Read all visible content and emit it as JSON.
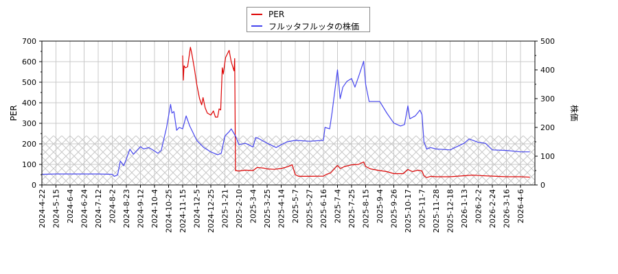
{
  "chart_data": {
    "type": "line",
    "title": "",
    "legend": {
      "position": "top-center",
      "entries": [
        {
          "label": "PER",
          "color": "#dd0000"
        },
        {
          "label": "フルッタフルッタの株価",
          "color": "#4444ee"
        }
      ]
    },
    "left_axis": {
      "label": "PER",
      "ylim": [
        0,
        700
      ],
      "ticks": [
        0,
        100,
        200,
        300,
        400,
        500,
        600,
        700
      ]
    },
    "right_axis": {
      "label": "株価",
      "ylim": [
        0,
        500
      ],
      "ticks": [
        0,
        100,
        200,
        300,
        400,
        500
      ]
    },
    "grid": true,
    "hatched_band": {
      "axis": "left",
      "from": 0,
      "to": 240
    },
    "x_tick_labels": [
      "2024-4-22",
      "2024-5-15",
      "2024-6-4",
      "2024-6-24",
      "2024-7-12",
      "2024-8-2",
      "2024-8-23",
      "2024-9-12",
      "2024-10-4",
      "2024-10-25",
      "2024-11-15",
      "2024-12-5",
      "2024-12-25",
      "2025-1-21",
      "2025-2-10",
      "2025-3-4",
      "2025-3-25",
      "2025-4-14",
      "2025-5-7",
      "2025-5-27",
      "2025-6-16",
      "2025-7-4",
      "2025-7-25",
      "2025-8-15",
      "2025-9-4",
      "2025-9-26",
      "2025-10-17",
      "2025-11-7",
      "2025-11-28",
      "2025-12-18",
      "2026-1-13",
      "2026-2-2",
      "2026-2-24",
      "2026-3-16",
      "2026-4-6"
    ],
    "series": [
      {
        "name": "PER",
        "axis": "left",
        "color": "#dd0000",
        "points": [
          [
            "2024-11-15",
            630
          ],
          [
            "2024-11-16",
            510
          ],
          [
            "2024-11-17",
            580
          ],
          [
            "2024-11-19",
            570
          ],
          [
            "2024-11-22",
            575
          ],
          [
            "2024-11-26",
            670
          ],
          [
            "2024-11-28",
            640
          ],
          [
            "2024-12-2",
            560
          ],
          [
            "2024-12-5",
            490
          ],
          [
            "2024-12-9",
            420
          ],
          [
            "2024-12-12",
            390
          ],
          [
            "2024-12-14",
            425
          ],
          [
            "2024-12-17",
            375
          ],
          [
            "2024-12-20",
            350
          ],
          [
            "2024-12-25",
            340
          ],
          [
            "2024-12-30",
            360
          ],
          [
            "2025-1-3",
            330
          ],
          [
            "2025-1-7",
            330
          ],
          [
            "2025-1-10",
            370
          ],
          [
            "2025-1-13",
            365
          ],
          [
            "2025-1-16",
            570
          ],
          [
            "2025-1-18",
            540
          ],
          [
            "2025-1-22",
            620
          ],
          [
            "2025-1-27",
            655
          ],
          [
            "2025-1-30",
            600
          ],
          [
            "2025-2-3",
            555
          ],
          [
            "2025-2-4",
            615
          ],
          [
            "2025-2-5",
            70
          ],
          [
            "2025-2-10",
            68
          ],
          [
            "2025-2-20",
            72
          ],
          [
            "2025-3-4",
            70
          ],
          [
            "2025-3-10",
            85
          ],
          [
            "2025-3-20",
            82
          ],
          [
            "2025-3-25",
            78
          ],
          [
            "2025-4-4",
            76
          ],
          [
            "2025-4-14",
            80
          ],
          [
            "2025-4-24",
            88
          ],
          [
            "2025-5-2",
            98
          ],
          [
            "2025-5-7",
            50
          ],
          [
            "2025-5-12",
            42
          ],
          [
            "2025-5-27",
            42
          ],
          [
            "2025-6-16",
            43
          ],
          [
            "2025-6-20",
            52
          ],
          [
            "2025-6-25",
            58
          ],
          [
            "2025-7-4",
            95
          ],
          [
            "2025-7-8",
            80
          ],
          [
            "2025-7-15",
            90
          ],
          [
            "2025-7-25",
            98
          ],
          [
            "2025-8-4",
            100
          ],
          [
            "2025-8-12",
            112
          ],
          [
            "2025-8-15",
            90
          ],
          [
            "2025-8-22",
            78
          ],
          [
            "2025-9-4",
            70
          ],
          [
            "2025-9-15",
            65
          ],
          [
            "2025-9-26",
            55
          ],
          [
            "2025-10-10",
            55
          ],
          [
            "2025-10-17",
            75
          ],
          [
            "2025-10-24",
            65
          ],
          [
            "2025-11-1",
            72
          ],
          [
            "2025-11-7",
            68
          ],
          [
            "2025-11-10",
            45
          ],
          [
            "2025-11-14",
            36
          ],
          [
            "2025-11-20",
            42
          ],
          [
            "2025-11-28",
            40
          ],
          [
            "2025-12-18",
            40
          ],
          [
            "2026-1-13",
            45
          ],
          [
            "2026-1-25",
            48
          ],
          [
            "2026-2-2",
            46
          ],
          [
            "2026-2-24",
            43
          ],
          [
            "2026-3-16",
            40
          ],
          [
            "2026-4-6",
            40
          ],
          [
            "2026-4-20",
            38
          ]
        ]
      },
      {
        "name": "フルッタフルッタの株価",
        "axis": "right",
        "color": "#4444ee",
        "points": [
          [
            "2024-4-22",
            37
          ],
          [
            "2024-5-15",
            38
          ],
          [
            "2024-6-4",
            38
          ],
          [
            "2024-6-24",
            38
          ],
          [
            "2024-7-12",
            38
          ],
          [
            "2024-8-2",
            37
          ],
          [
            "2024-8-5",
            30
          ],
          [
            "2024-8-10",
            35
          ],
          [
            "2024-8-14",
            83
          ],
          [
            "2024-8-19",
            67
          ],
          [
            "2024-8-23",
            90
          ],
          [
            "2024-8-28",
            124
          ],
          [
            "2024-9-2",
            107
          ],
          [
            "2024-9-7",
            120
          ],
          [
            "2024-9-12",
            133
          ],
          [
            "2024-9-17",
            125
          ],
          [
            "2024-9-25",
            130
          ],
          [
            "2024-10-4",
            118
          ],
          [
            "2024-10-9",
            110
          ],
          [
            "2024-10-14",
            120
          ],
          [
            "2024-10-18",
            160
          ],
          [
            "2024-10-22",
            200
          ],
          [
            "2024-10-25",
            240
          ],
          [
            "2024-10-28",
            280
          ],
          [
            "2024-10-30",
            250
          ],
          [
            "2024-11-2",
            255
          ],
          [
            "2024-11-6",
            190
          ],
          [
            "2024-11-10",
            200
          ],
          [
            "2024-11-15",
            195
          ],
          [
            "2024-11-20",
            240
          ],
          [
            "2024-11-25",
            205
          ],
          [
            "2024-12-5",
            155
          ],
          [
            "2024-12-15",
            130
          ],
          [
            "2024-12-25",
            115
          ],
          [
            "2025-1-7",
            105
          ],
          [
            "2025-1-14",
            110
          ],
          [
            "2025-1-21",
            170
          ],
          [
            "2025-1-27",
            185
          ],
          [
            "2025-1-30",
            195
          ],
          [
            "2025-2-5",
            170
          ],
          [
            "2025-2-10",
            140
          ],
          [
            "2025-2-20",
            145
          ],
          [
            "2025-3-4",
            132
          ],
          [
            "2025-3-8",
            165
          ],
          [
            "2025-3-12",
            162
          ],
          [
            "2025-3-25",
            145
          ],
          [
            "2025-4-7",
            130
          ],
          [
            "2025-4-14",
            140
          ],
          [
            "2025-4-24",
            150
          ],
          [
            "2025-5-7",
            155
          ],
          [
            "2025-5-27",
            152
          ],
          [
            "2025-6-16",
            155
          ],
          [
            "2025-6-18",
            200
          ],
          [
            "2025-6-24",
            195
          ],
          [
            "2025-6-27",
            250
          ],
          [
            "2025-7-4",
            400
          ],
          [
            "2025-7-8",
            300
          ],
          [
            "2025-7-12",
            340
          ],
          [
            "2025-7-18",
            360
          ],
          [
            "2025-7-25",
            370
          ],
          [
            "2025-7-30",
            340
          ],
          [
            "2025-8-5",
            380
          ],
          [
            "2025-8-12",
            430
          ],
          [
            "2025-8-15",
            350
          ],
          [
            "2025-8-20",
            290
          ],
          [
            "2025-9-4",
            290
          ],
          [
            "2025-9-15",
            250
          ],
          [
            "2025-9-26",
            215
          ],
          [
            "2025-10-6",
            205
          ],
          [
            "2025-10-12",
            210
          ],
          [
            "2025-10-17",
            275
          ],
          [
            "2025-10-20",
            230
          ],
          [
            "2025-10-28",
            240
          ],
          [
            "2025-11-4",
            260
          ],
          [
            "2025-11-7",
            245
          ],
          [
            "2025-11-10",
            150
          ],
          [
            "2025-11-14",
            125
          ],
          [
            "2025-11-20",
            130
          ],
          [
            "2025-11-28",
            125
          ],
          [
            "2025-12-18",
            122
          ],
          [
            "2026-1-13",
            145
          ],
          [
            "2026-1-20",
            160
          ],
          [
            "2026-2-2",
            148
          ],
          [
            "2026-2-13",
            145
          ],
          [
            "2026-2-24",
            122
          ],
          [
            "2026-3-16",
            120
          ],
          [
            "2026-4-6",
            115
          ],
          [
            "2026-4-20",
            115
          ]
        ]
      }
    ]
  }
}
